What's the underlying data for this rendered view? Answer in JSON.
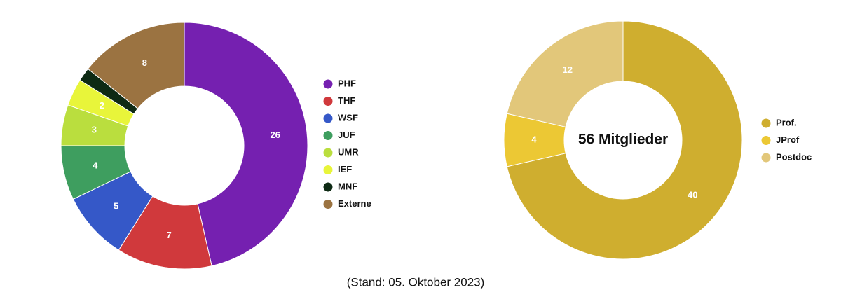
{
  "chart_data": [
    {
      "type": "donut",
      "categories": [
        "PHF",
        "THF",
        "WSF",
        "JUF",
        "UMR",
        "IEF",
        "MNF",
        "Externe"
      ],
      "values": [
        26,
        7,
        5,
        4,
        3,
        2,
        1,
        8
      ],
      "colors": [
        "#7520b0",
        "#d0393c",
        "#3558c8",
        "#3e9e5f",
        "#bade3e",
        "#e8f53a",
        "#0e2a14",
        "#9b7341"
      ],
      "legend": "right"
    },
    {
      "type": "donut",
      "categories": [
        "Prof.",
        "JProf",
        "Postdoc"
      ],
      "values": [
        40,
        4,
        12
      ],
      "colors": [
        "#cfae2f",
        "#ecc834",
        "#e2c77a"
      ],
      "center_label": "56 Mitglieder",
      "legend": "right"
    }
  ],
  "footer": "(Stand: 05. Oktober 2023)"
}
